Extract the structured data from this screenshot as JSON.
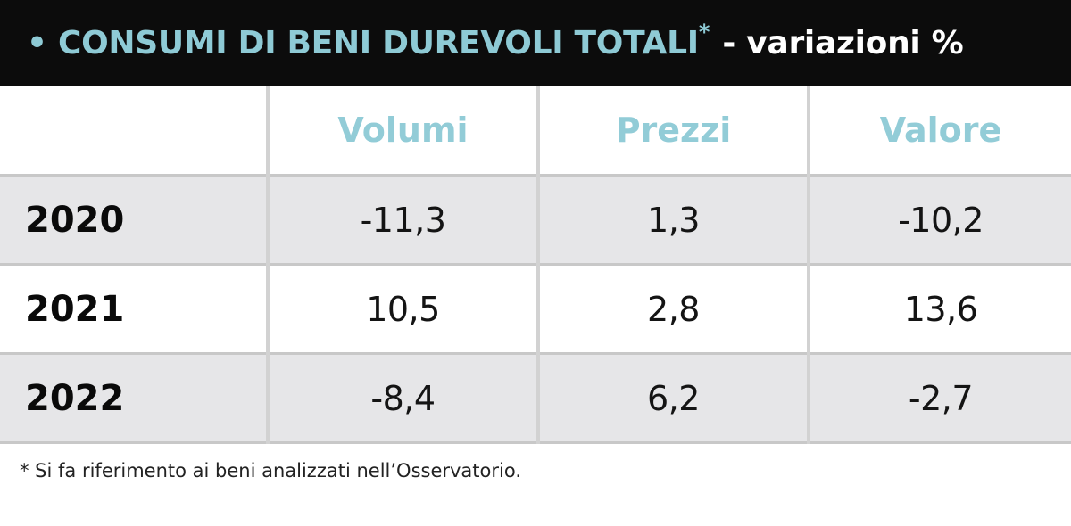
{
  "title": {
    "bullet_text": "• CONSUMI DI BENI DUREVOLI TOTALI",
    "asterisk": "*",
    "subtitle": "- variazioni %"
  },
  "colors": {
    "header_bar": "#0c0c0c",
    "accent_teal": "#8ecad5",
    "row_stripe": "#e6e6e8"
  },
  "chart_data": {
    "type": "table",
    "columns": [
      "",
      "Volumi",
      "Prezzi",
      "Valore"
    ],
    "rows": [
      {
        "year": "2020",
        "values": [
          "-11,3",
          "1,3",
          "-10,2"
        ]
      },
      {
        "year": "2021",
        "values": [
          "10,5",
          "2,8",
          "13,6"
        ]
      },
      {
        "year": "2022",
        "values": [
          "-8,4",
          "6,2",
          "-2,7"
        ]
      }
    ]
  },
  "footnote": "* Si fa riferimento ai beni analizzati nell’Osservatorio."
}
